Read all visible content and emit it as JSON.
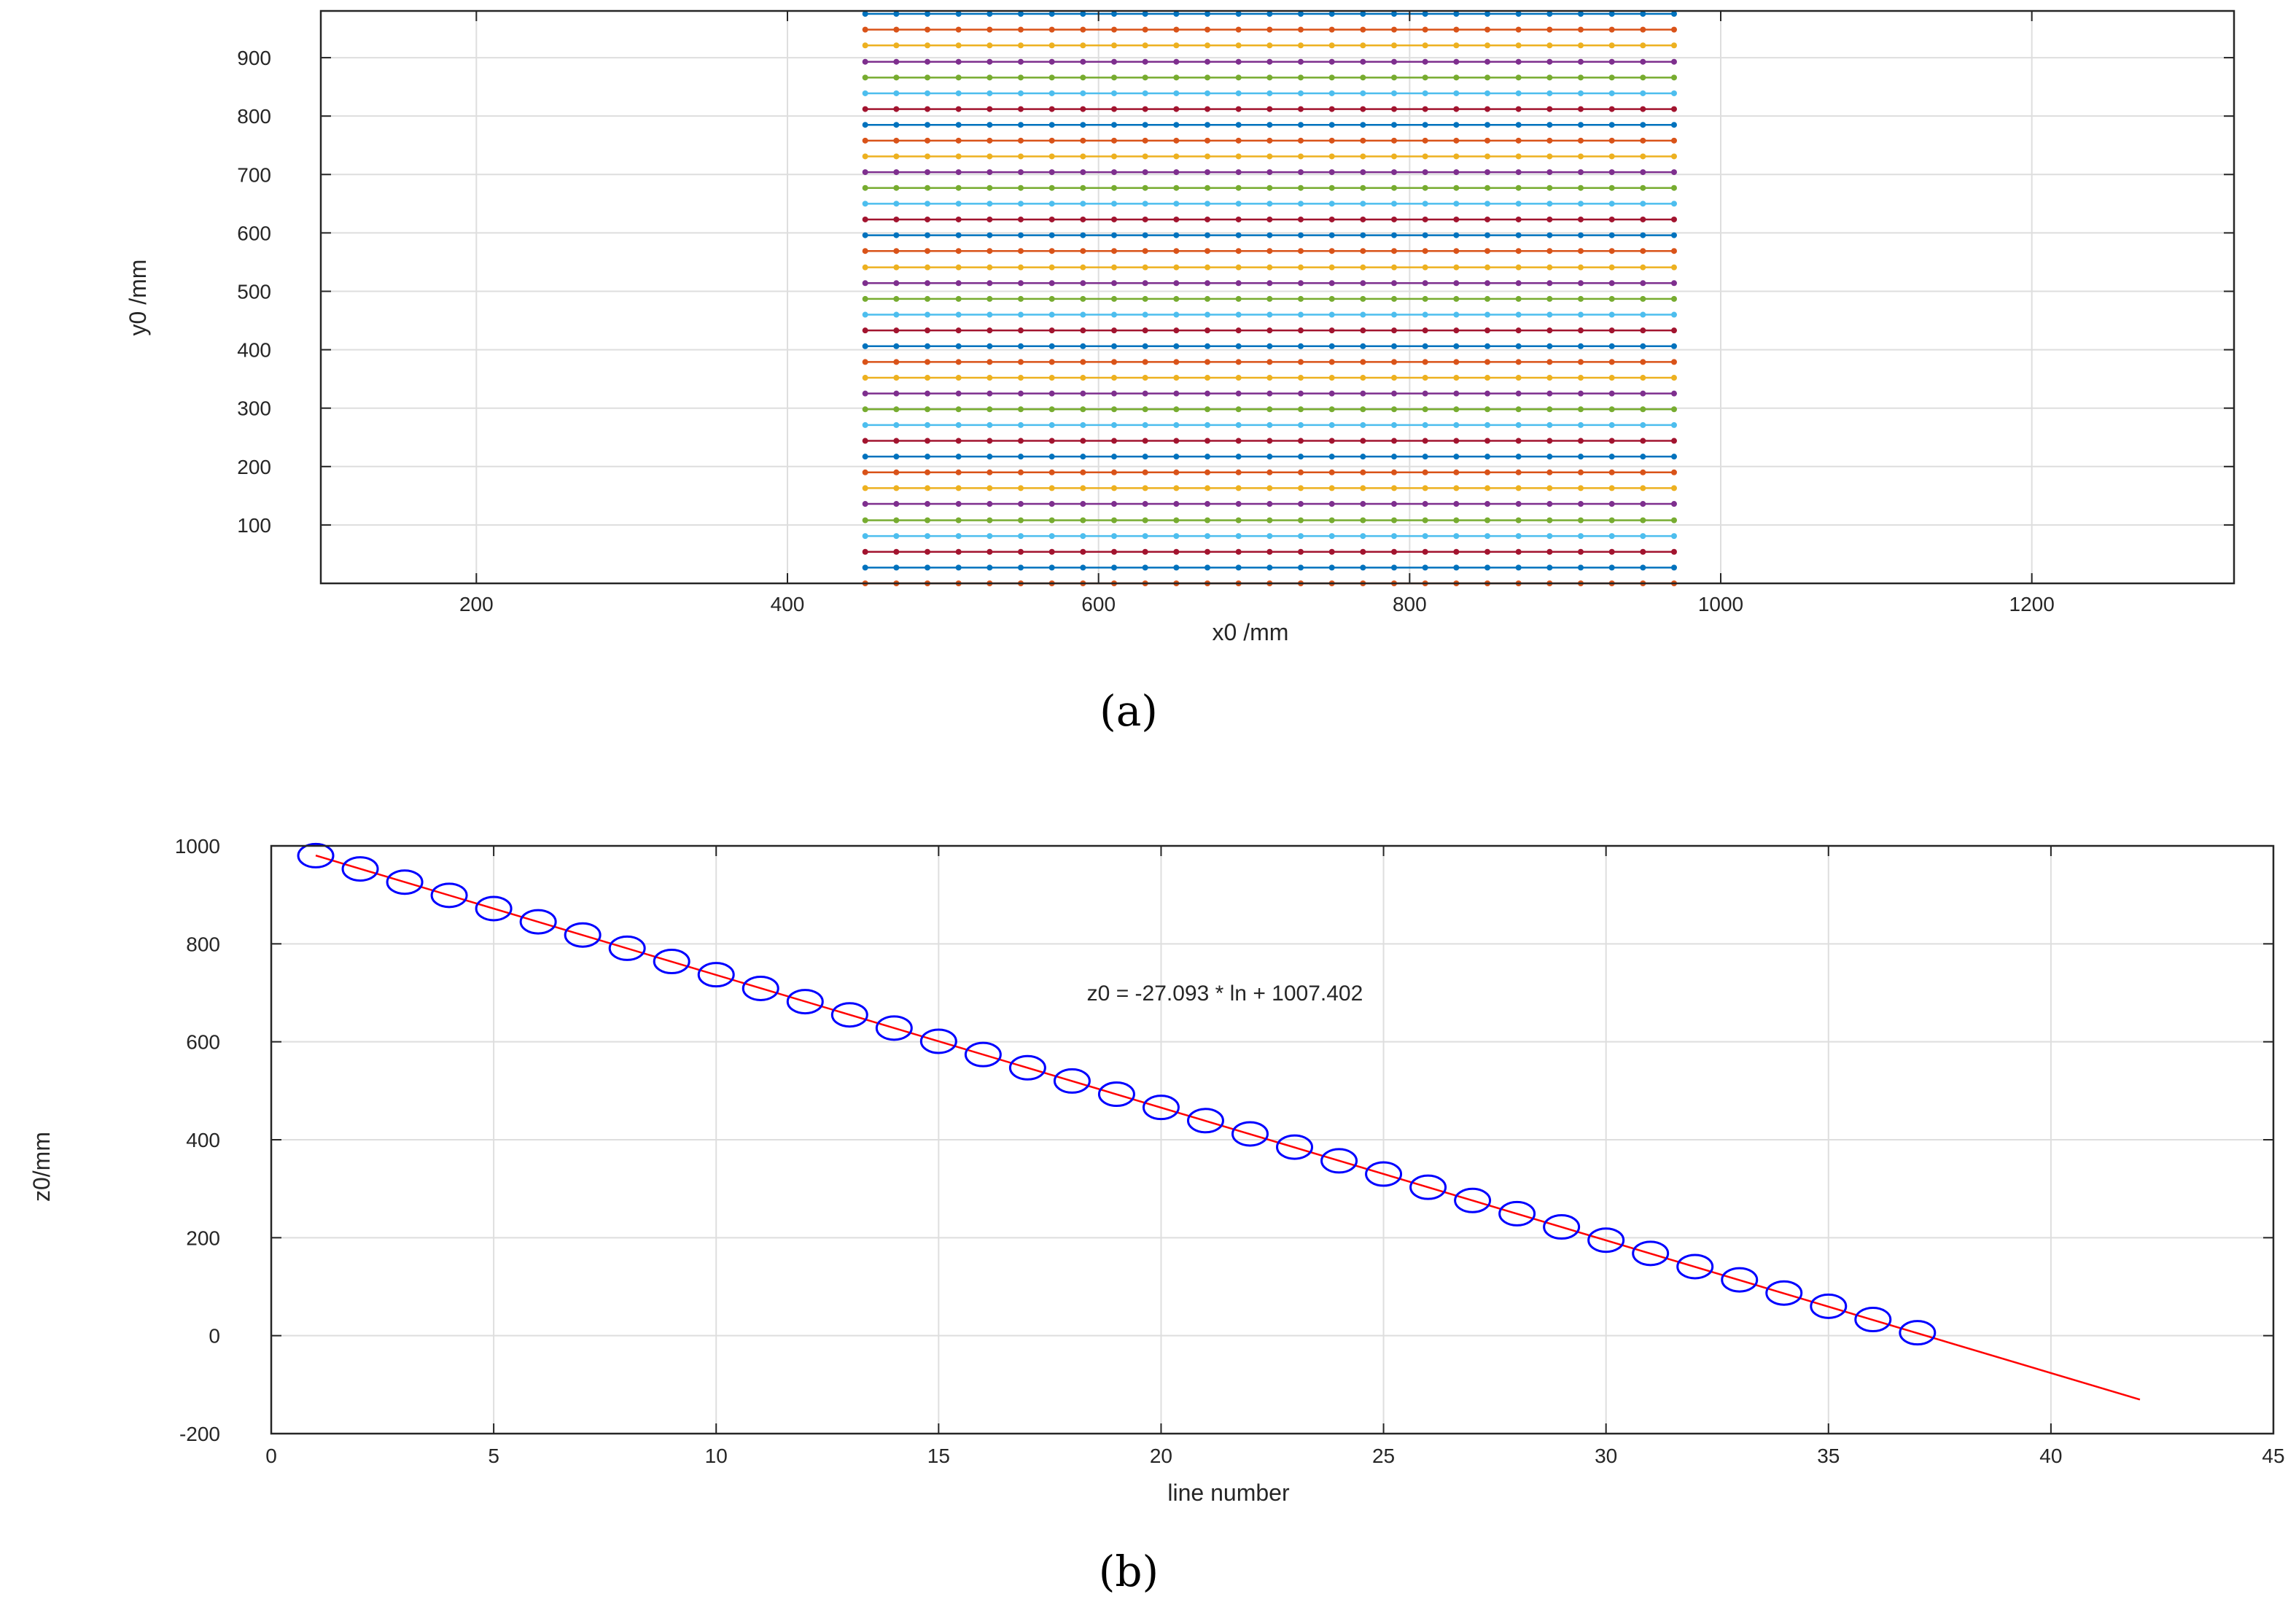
{
  "chart_data": [
    {
      "type": "line",
      "panel_label": "(a)",
      "xlabel": "x0 /mm",
      "ylabel": "y0 /mm",
      "xlim": [
        100,
        1330
      ],
      "ylim": [
        0,
        980
      ],
      "grid": true,
      "xticks": [
        200,
        400,
        600,
        800,
        1000,
        1200
      ],
      "yticks": [
        100,
        200,
        300,
        400,
        500,
        600,
        700,
        800,
        900
      ],
      "x": [
        450,
        470,
        490,
        510,
        530,
        550,
        570,
        590,
        610,
        630,
        650,
        670,
        690,
        710,
        730,
        750,
        770,
        790,
        810,
        830,
        850,
        870,
        890,
        910,
        930,
        950,
        970
      ],
      "colors": [
        "#0072BD",
        "#D95319",
        "#EDB120",
        "#7E2F8E",
        "#77AC30",
        "#4DBEEE",
        "#A2142F"
      ],
      "series_y0": [
        975,
        948,
        921,
        893,
        866,
        839,
        812,
        785,
        758,
        731,
        704,
        677,
        650,
        623,
        596,
        569,
        541,
        514,
        487,
        460,
        433,
        406,
        379,
        352,
        325,
        298,
        271,
        244,
        217,
        190,
        163,
        136,
        108,
        81,
        54,
        27,
        0
      ]
    },
    {
      "type": "scatter",
      "panel_label": "(b)",
      "xlabel": "line number",
      "ylabel": "z0/mm",
      "xlim": [
        0,
        45
      ],
      "ylim": [
        -200,
        1000
      ],
      "grid": true,
      "xticks": [
        0,
        5,
        10,
        15,
        20,
        25,
        30,
        35,
        40,
        45
      ],
      "yticks": [
        -200,
        0,
        200,
        400,
        600,
        800,
        1000
      ],
      "annotation": "z0 = -27.093 * ln + 1007.402",
      "points_x": [
        1,
        2,
        3,
        4,
        5,
        6,
        7,
        8,
        9,
        10,
        11,
        12,
        13,
        14,
        15,
        16,
        17,
        18,
        19,
        20,
        21,
        22,
        23,
        24,
        25,
        26,
        27,
        28,
        29,
        30,
        31,
        32,
        33,
        34,
        35,
        36,
        37
      ],
      "points_y": [
        980,
        953,
        926,
        899,
        872,
        845,
        818,
        791,
        764,
        737,
        709,
        682,
        655,
        628,
        601,
        574,
        547,
        520,
        493,
        466,
        439,
        412,
        385,
        357,
        330,
        303,
        276,
        249,
        222,
        195,
        168,
        141,
        114,
        87,
        60,
        33,
        6
      ],
      "fit": {
        "slope": -27.093,
        "intercept": 1007.402,
        "x_range": [
          1,
          42
        ]
      },
      "marker_color": "#0000ff",
      "fit_color": "#ff0000"
    }
  ]
}
